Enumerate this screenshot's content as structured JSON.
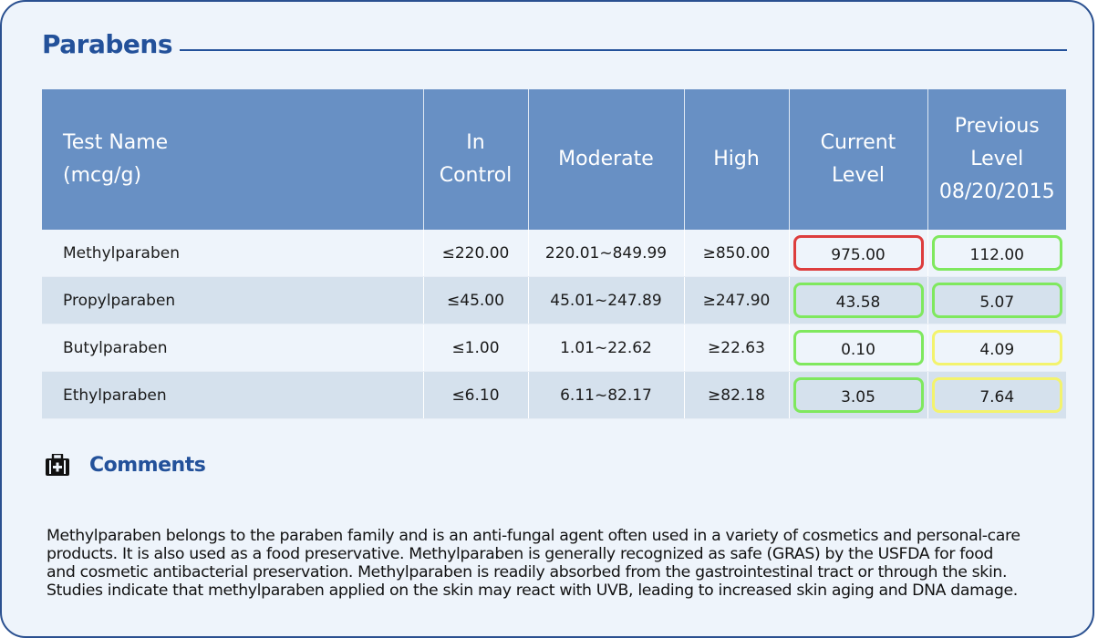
{
  "section": {
    "title": "Parabens"
  },
  "table": {
    "headers": {
      "test_name": [
        "Test Name",
        "(mcg/g)"
      ],
      "in_control": [
        "In",
        "Control"
      ],
      "moderate": [
        "Moderate"
      ],
      "high": [
        "High"
      ],
      "current": [
        "Current",
        "Level"
      ],
      "previous": [
        "Previous",
        "Level",
        "08/20/2015"
      ]
    },
    "rows": [
      {
        "name": "Methylparaben",
        "in_control": "≤220.00",
        "moderate": "220.01~849.99",
        "high": "≥850.00",
        "current": "975.00",
        "current_status": "red",
        "previous": "112.00",
        "previous_status": "green"
      },
      {
        "name": "Propylparaben",
        "in_control": "≤45.00",
        "moderate": "45.01~247.89",
        "high": "≥247.90",
        "current": "43.58",
        "current_status": "green",
        "previous": "5.07",
        "previous_status": "green"
      },
      {
        "name": "Butylparaben",
        "in_control": "≤1.00",
        "moderate": "1.01~22.62",
        "high": "≥22.63",
        "current": "0.10",
        "current_status": "green",
        "previous": "4.09",
        "previous_status": "yellow"
      },
      {
        "name": "Ethylparaben",
        "in_control": "≤6.10",
        "moderate": "6.11~82.17",
        "high": "≥82.18",
        "current": "3.05",
        "current_status": "green",
        "previous": "7.64",
        "previous_status": "yellow"
      }
    ]
  },
  "status_colors": {
    "red": "#dd3d3d",
    "green": "#7fe85e",
    "yellow": "#f3f36d"
  },
  "comments": {
    "icon": "first-aid-kit-icon",
    "label": "Comments",
    "lines": [
      "Methylparaben belongs to the paraben family and is an anti-fungal agent often used in a variety of cosmetics and personal-care",
      "products. It is also used as a food preservative. Methylparaben is generally recognized as safe (GRAS) by the USFDA for food",
      "and cosmetic antibacterial preservation. Methylparaben is readily absorbed from the gastrointestinal tract or through the skin.",
      "Studies indicate that methylparaben applied on the skin may react with UVB, leading to increased skin aging and DNA damage."
    ]
  }
}
